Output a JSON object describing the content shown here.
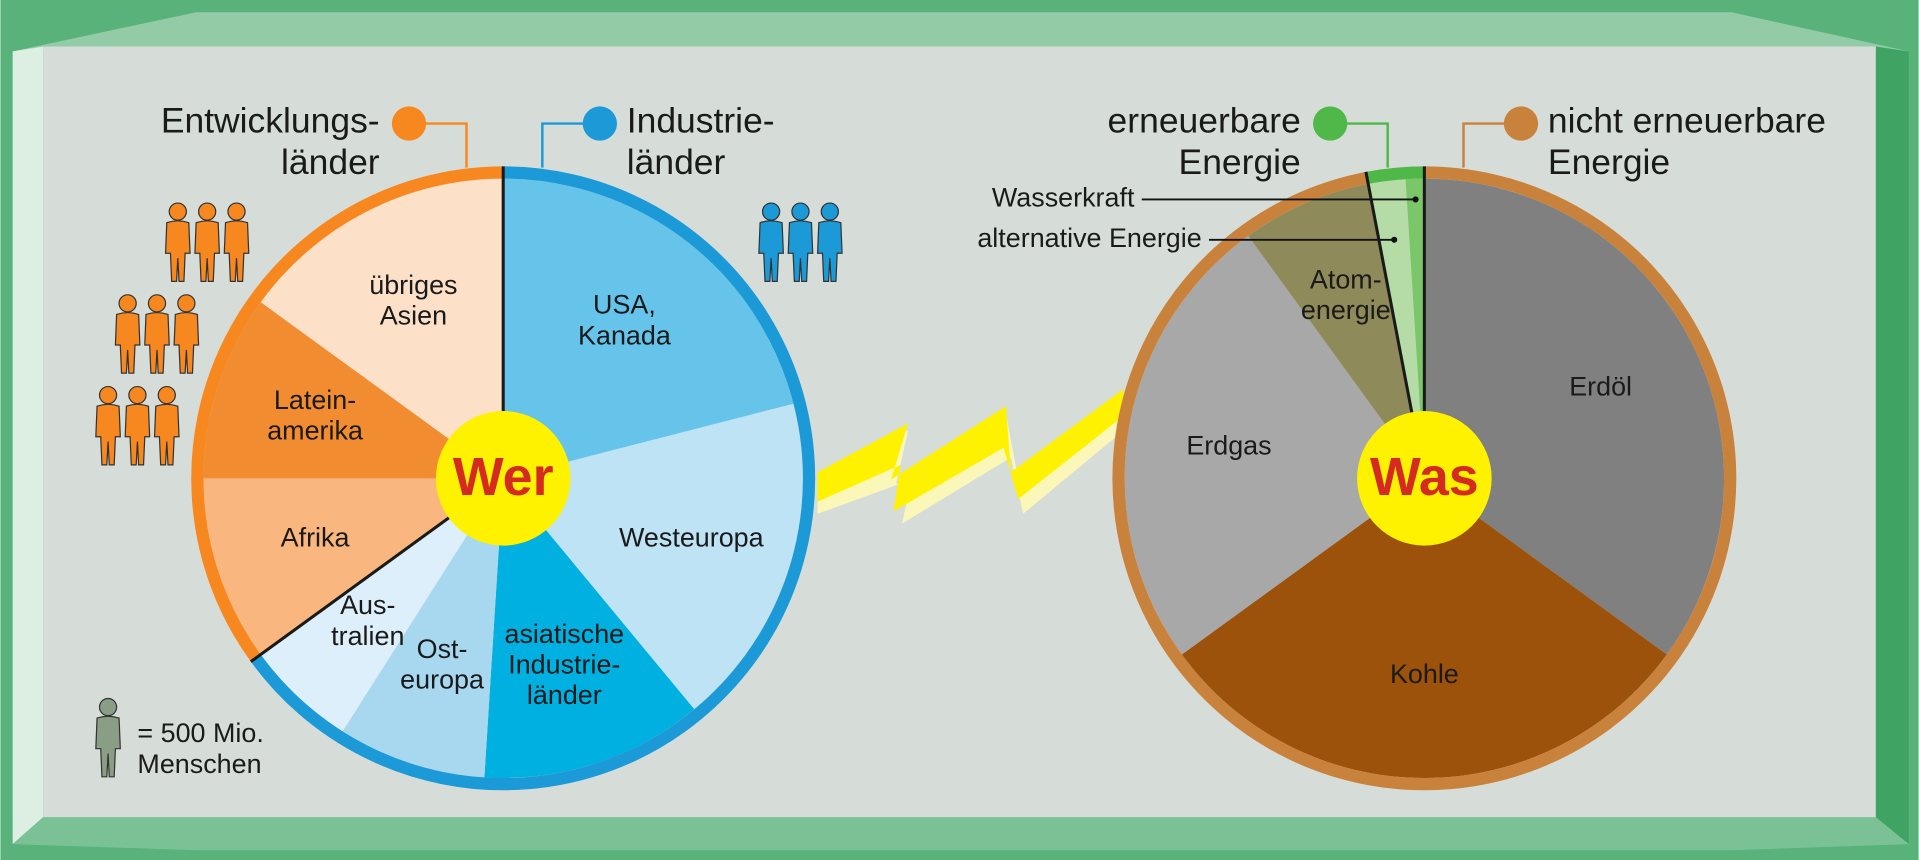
{
  "chart_data": [
    {
      "type": "pie",
      "center_label": "Wer",
      "series": [
        {
          "name": "Industrie-\nländer",
          "color": "#1b9ad7",
          "icons": 3,
          "categories": [
            "USA,\nKanada",
            "Westeuropa",
            "asiatische\nIndustrie-\nländer",
            "Ost-\neuropa",
            "Aus-\ntralien"
          ],
          "values": [
            21,
            18,
            12,
            8,
            6
          ],
          "colors": [
            "#66c4ea",
            "#bde3f5",
            "#00b0e0",
            "#a8d8f0",
            "#ddeffa"
          ]
        },
        {
          "name": "Entwicklungs-\nländer",
          "color": "#f7871f",
          "icons": 9,
          "categories": [
            "Afrika",
            "Latein-\namerika",
            "übriges\nAsien"
          ],
          "values": [
            10,
            10,
            15
          ],
          "colors": [
            "#f9b77f",
            "#f28c30",
            "#fde0c8"
          ]
        }
      ]
    },
    {
      "type": "pie",
      "center_label": "Was",
      "series": [
        {
          "name": "nicht erneuerbare\nEnergie",
          "color": "#c9823c",
          "categories": [
            "Erdöl",
            "Kohle",
            "Erdgas",
            "Atom-\nenergie"
          ],
          "values": [
            35,
            30,
            25,
            7
          ],
          "colors": [
            "#808080",
            "#9c520b",
            "#a8a8a8",
            "#8f8a59"
          ]
        },
        {
          "name": "erneuerbare\nEnergie",
          "color": "#4fb848",
          "categories": [
            "alternative Energie",
            "Wasserkraft"
          ],
          "values": [
            2,
            1
          ],
          "colors": [
            "#b5dca6",
            "#7cc66a"
          ]
        }
      ]
    }
  ],
  "legend": {
    "icon_label": "= 500 Mio.\nMenschen",
    "icon_color": "#8a9e86"
  }
}
